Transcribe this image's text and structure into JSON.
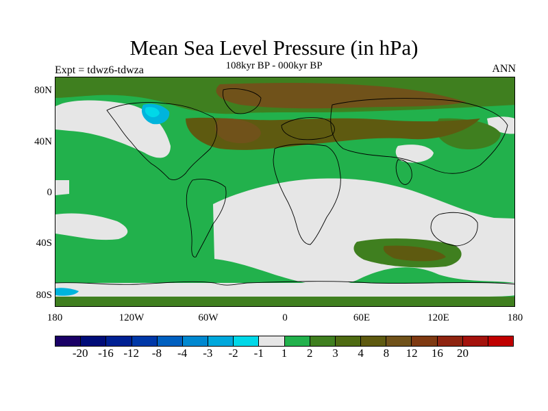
{
  "title": "Mean Sea Level Pressure (in hPa)",
  "subtitle": "108kyr BP - 000kyr BP",
  "left_label": "Expt = tdwz6-tdwza",
  "right_label": "ANN",
  "map": {
    "lat_labels": [
      "80N",
      "40N",
      "0",
      "40S",
      "80S"
    ],
    "lon_labels": [
      "180",
      "120W",
      "60W",
      "0",
      "60E",
      "120E",
      "180"
    ],
    "colors": {
      "near_zero": "#e6e6e6",
      "green": "#22b14c",
      "dark_green": "#3f7f1f",
      "olive": "#5a5a10",
      "brown": "#70521a",
      "cyan": "#00b4dc",
      "light_cyan": "#00d8e8",
      "coast": "#000000"
    }
  },
  "colorbar": {
    "colors": [
      "#1a0066",
      "#000c78",
      "#002093",
      "#0038a8",
      "#0060c0",
      "#0088d0",
      "#00a8dc",
      "#00d8e8",
      "#e6e6e6",
      "#22b14c",
      "#3f7f1f",
      "#4e6b12",
      "#5e5a10",
      "#70521a",
      "#7f3a12",
      "#8f2410",
      "#a4120c",
      "#c00000"
    ],
    "labels": [
      "-20",
      "-16",
      "-12",
      "-8",
      "-4",
      "-3",
      "-2",
      "-1",
      "1",
      "2",
      "3",
      "4",
      "8",
      "12",
      "16",
      "20"
    ]
  }
}
